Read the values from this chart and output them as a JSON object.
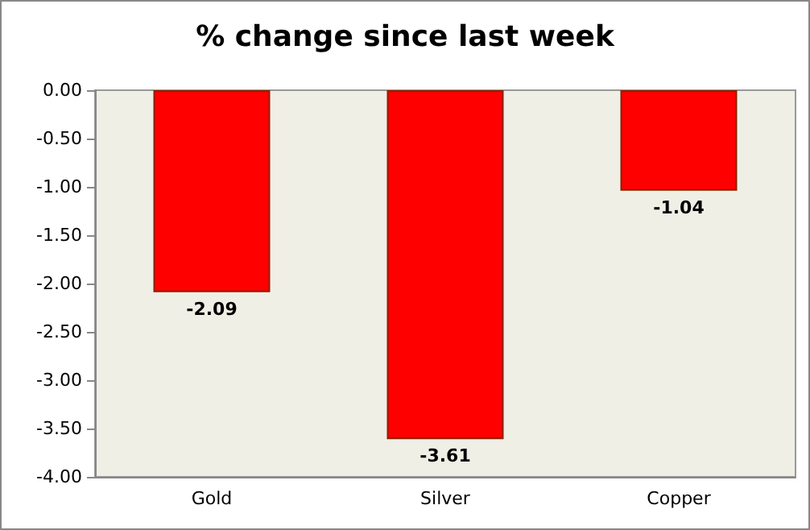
{
  "chart_data": {
    "type": "bar",
    "title": "% change since last week",
    "categories": [
      "Gold",
      "Silver",
      "Copper"
    ],
    "values": [
      -2.09,
      -3.61,
      -1.04
    ],
    "color": "#ff0000",
    "ylim": [
      -4,
      0
    ],
    "yticks": [
      {
        "value": -4,
        "label": "-4.00"
      },
      {
        "value": -3.5,
        "label": "-3.50"
      },
      {
        "value": -3,
        "label": "-3.00"
      },
      {
        "value": -2.5,
        "label": "-2.50"
      },
      {
        "value": -2,
        "label": "-2.00"
      },
      {
        "value": -1.5,
        "label": "-1.50"
      },
      {
        "value": -1,
        "label": "-1.00"
      },
      {
        "value": -0.5,
        "label": "-0.50"
      },
      {
        "value": 0,
        "label": "0.00"
      }
    ],
    "data_labels": true
  }
}
